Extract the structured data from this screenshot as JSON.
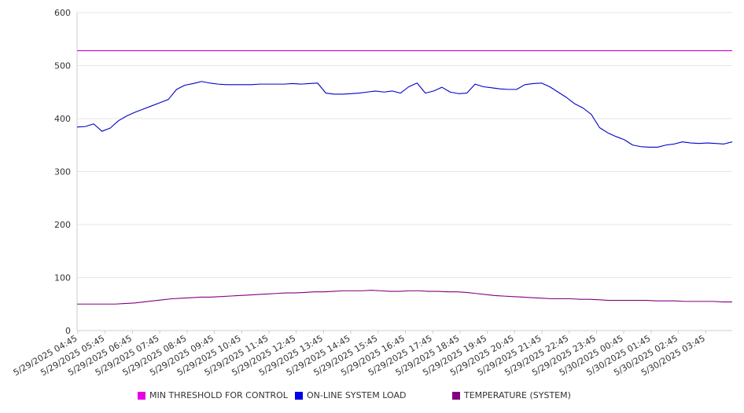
{
  "chart_data": {
    "type": "line",
    "title": "",
    "xlabel": "",
    "ylabel": "",
    "ylim": [
      0,
      600
    ],
    "yticks": [
      0,
      100,
      200,
      300,
      400,
      500,
      600
    ],
    "grid": true,
    "legend_position": "bottom",
    "x_tick_labels": [
      "5/29/2025 04:45",
      "5/29/2025 05:45",
      "5/29/2025 06:45",
      "5/29/2025 07:45",
      "5/29/2025 08:45",
      "5/29/2025 09:45",
      "5/29/2025 10:45",
      "5/29/2025 11:45",
      "5/29/2025 12:45",
      "5/29/2025 13:45",
      "5/29/2025 14:45",
      "5/29/2025 15:45",
      "5/29/2025 16:45",
      "5/29/2025 17:45",
      "5/29/2025 18:45",
      "5/29/2025 19:45",
      "5/29/2025 20:45",
      "5/29/2025 21:45",
      "5/29/2025 22:45",
      "5/29/2025 23:45",
      "5/30/2025 00:45",
      "5/30/2025 01:45",
      "5/30/2025 02:45",
      "5/30/2025 03:45"
    ],
    "x_hours": [
      0,
      0.25,
      0.5,
      0.75,
      1,
      1.25,
      1.5,
      1.75,
      2,
      2.25,
      2.5,
      2.75,
      3,
      3.25,
      3.5,
      3.75,
      4,
      4.25,
      4.5,
      4.75,
      5,
      5.25,
      5.5,
      5.75,
      6,
      6.25,
      6.5,
      6.75,
      7,
      7.25,
      7.5,
      7.75,
      8,
      8.25,
      8.5,
      8.75,
      9,
      9.25,
      9.5,
      9.75,
      10,
      10.25,
      10.5,
      10.75,
      11,
      11.25,
      11.5,
      11.75,
      12,
      12.25,
      12.5,
      12.75,
      13,
      13.25,
      13.5,
      13.75,
      14,
      14.25,
      14.5,
      14.75,
      15,
      15.25,
      15.5,
      15.75,
      16,
      16.25,
      16.5,
      16.75,
      17,
      17.25,
      17.5,
      17.75,
      18,
      18.25,
      18.5,
      18.75,
      19,
      19.25,
      19.5,
      19.75,
      20,
      20.25,
      20.5,
      20.75,
      21,
      21.25,
      21.5,
      21.75,
      22,
      22.25,
      22.5,
      22.75,
      23,
      23.25,
      23.5,
      23.75
    ],
    "series": [
      {
        "name": "MIN THRESHOLD FOR CONTROL",
        "color": "#cc00cc",
        "values": [
          528,
          528,
          528,
          528,
          528,
          528,
          528,
          528,
          528,
          528,
          528,
          528,
          528,
          528,
          528,
          528,
          528,
          528,
          528,
          528,
          528,
          528,
          528,
          528,
          528,
          528,
          528,
          528,
          528,
          528,
          528,
          528,
          528,
          528,
          528,
          528,
          528,
          528,
          528,
          528,
          528,
          528,
          528,
          528,
          528,
          528,
          528,
          528,
          528,
          528,
          528,
          528,
          528,
          528,
          528,
          528,
          528,
          528,
          528,
          528,
          528,
          528,
          528,
          528,
          528,
          528,
          528,
          528,
          528,
          528,
          528,
          528,
          528,
          528,
          528,
          528,
          528,
          528,
          528,
          528,
          528,
          528,
          528,
          528,
          528,
          528,
          528,
          528,
          528,
          528,
          528,
          528,
          528,
          528,
          528,
          528
        ]
      },
      {
        "name": "ON-LINE SYSTEM LOAD",
        "color": "#0000cc",
        "values": [
          384,
          385,
          390,
          376,
          382,
          396,
          405,
          412,
          418,
          424,
          430,
          436,
          455,
          463,
          466,
          470,
          467,
          465,
          464,
          464,
          464,
          464,
          465,
          465,
          465,
          465,
          466,
          465,
          466,
          467,
          448,
          446,
          446,
          447,
          448,
          450,
          452,
          450,
          452,
          448,
          460,
          467,
          448,
          452,
          459,
          450,
          447,
          448,
          465,
          460,
          458,
          456,
          455,
          455,
          464,
          466,
          467,
          460,
          450,
          440,
          428,
          420,
          408,
          383,
          373,
          366,
          360,
          350,
          347,
          346,
          346,
          350,
          352,
          356,
          354,
          353,
          354,
          353,
          352,
          356
        ]
      },
      {
        "name": "TEMPERATURE (SYSTEM)",
        "color": "#800080",
        "values": [
          50,
          50,
          50,
          50,
          50,
          51,
          52,
          54,
          56,
          58,
          60,
          61,
          62,
          63,
          63,
          64,
          65,
          66,
          67,
          68,
          69,
          70,
          71,
          71,
          72,
          73,
          73,
          74,
          75,
          75,
          75,
          76,
          75,
          74,
          74,
          75,
          75,
          74,
          74,
          73,
          73,
          72,
          70,
          68,
          66,
          65,
          64,
          63,
          62,
          61,
          60,
          60,
          60,
          59,
          59,
          58,
          57,
          57,
          57,
          57,
          57,
          56,
          56,
          56,
          55,
          55,
          55,
          55,
          54,
          54
        ]
      }
    ]
  },
  "legend": {
    "items": [
      {
        "label": "MIN THRESHOLD FOR CONTROL",
        "color": "#cc00cc"
      },
      {
        "label": "ON-LINE SYSTEM LOAD",
        "color": "#0000cc"
      },
      {
        "label": "TEMPERATURE (SYSTEM)",
        "color": "#800080"
      }
    ]
  }
}
